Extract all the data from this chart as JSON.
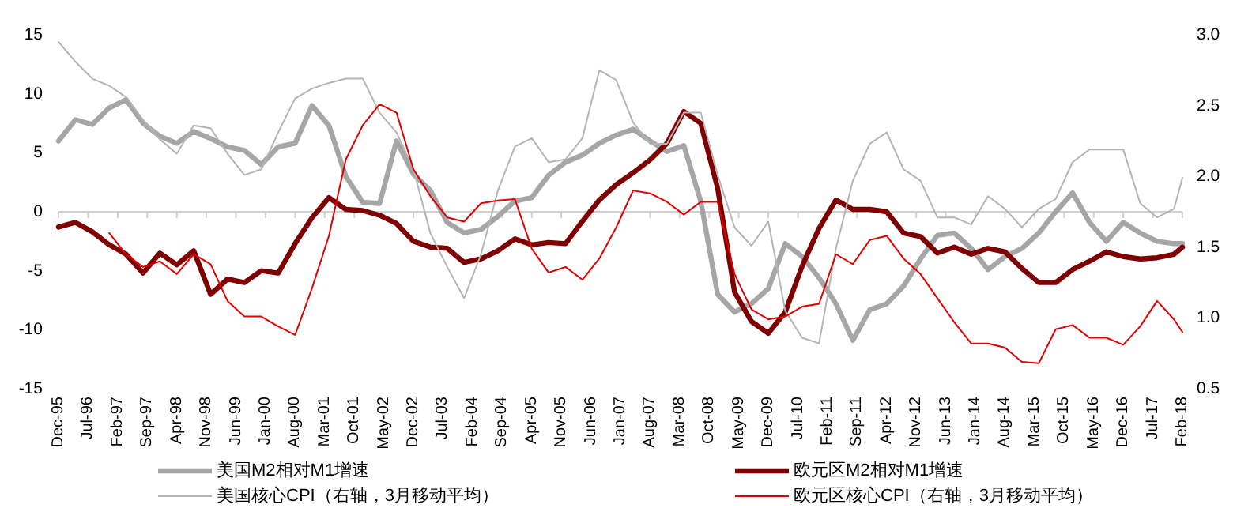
{
  "chart_data": {
    "type": "line",
    "x": [
      "1995-12",
      "1996-04",
      "1996-08",
      "1996-12",
      "1997-04",
      "1997-08",
      "1997-12",
      "1998-04",
      "1998-08",
      "1998-12",
      "1999-04",
      "1999-08",
      "1999-12",
      "2000-04",
      "2000-08",
      "2000-12",
      "2001-04",
      "2001-08",
      "2001-12",
      "2002-04",
      "2002-08",
      "2002-12",
      "2003-04",
      "2003-08",
      "2003-12",
      "2004-04",
      "2004-08",
      "2004-12",
      "2005-04",
      "2005-08",
      "2005-12",
      "2006-04",
      "2006-08",
      "2006-12",
      "2007-04",
      "2007-08",
      "2007-12",
      "2008-04",
      "2008-08",
      "2008-12",
      "2009-04",
      "2009-08",
      "2009-12",
      "2010-04",
      "2010-08",
      "2010-12",
      "2011-04",
      "2011-08",
      "2011-12",
      "2012-04",
      "2012-08",
      "2012-12",
      "2013-04",
      "2013-08",
      "2013-12",
      "2014-04",
      "2014-08",
      "2014-12",
      "2015-04",
      "2015-08",
      "2015-12",
      "2016-04",
      "2016-08",
      "2016-12",
      "2017-04",
      "2017-08",
      "2017-12",
      "2018-02"
    ],
    "series": [
      {
        "name": "美国M2相对M1增速",
        "color": "#a6a6a6",
        "values": [
          6.0,
          7.8,
          7.4,
          8.8,
          9.5,
          7.5,
          6.4,
          5.8,
          6.8,
          6.2,
          5.5,
          5.2,
          4.0,
          5.5,
          5.8,
          9.0,
          7.3,
          3.0,
          0.8,
          0.7,
          6.0,
          3.2,
          1.8,
          -0.9,
          -1.8,
          -1.5,
          -0.4,
          0.9,
          1.2,
          3.1,
          4.2,
          4.8,
          5.8,
          6.5,
          7.0,
          6.0,
          5.1,
          5.6,
          0.9,
          -7.0,
          -8.5,
          -7.8,
          -6.5,
          -2.7,
          -3.8,
          -5.6,
          -7.8,
          -10.9,
          -8.3,
          -7.8,
          -6.3,
          -4.0,
          -2.0,
          -1.8,
          -3.1,
          -4.9,
          -3.8,
          -3.1,
          -1.8,
          0.0,
          1.6,
          -0.9,
          -2.5,
          -0.9,
          -1.8,
          -2.5,
          -2.7,
          -2.7
        ]
      },
      {
        "name": "欧元区M2相对M1增速",
        "color": "#7f0000",
        "values": [
          -1.3,
          -0.9,
          -1.7,
          -2.8,
          -3.6,
          -5.2,
          -3.5,
          -4.5,
          -3.3,
          -7.0,
          -5.7,
          -6.0,
          -5.0,
          -5.2,
          -2.7,
          -0.5,
          1.2,
          0.2,
          0.1,
          -0.3,
          -1.0,
          -2.5,
          -3.0,
          -3.1,
          -4.3,
          -4.0,
          -3.3,
          -2.3,
          -2.8,
          -2.6,
          -2.7,
          -0.8,
          1.0,
          2.3,
          3.3,
          4.4,
          5.8,
          8.5,
          7.5,
          2.0,
          -6.8,
          -9.3,
          -10.3,
          -8.5,
          -4.6,
          -1.4,
          1.0,
          0.2,
          0.2,
          0.0,
          -1.8,
          -2.1,
          -3.5,
          -3.0,
          -3.6,
          -3.1,
          -3.4,
          -4.8,
          -6.0,
          -6.0,
          -4.9,
          -4.2,
          -3.4,
          -3.8,
          -4.0,
          -3.9,
          -3.6,
          -3.0
        ]
      },
      {
        "name": "美国核心CPI（右轴，3月移动平均）",
        "color": "#b4b4b4",
        "axis": "y2",
        "values": [
          2.95,
          2.81,
          2.69,
          2.64,
          2.56,
          2.4,
          2.26,
          2.16,
          2.36,
          2.34,
          2.16,
          2.01,
          2.05,
          2.31,
          2.55,
          2.62,
          2.66,
          2.69,
          2.69,
          2.45,
          2.31,
          2.05,
          1.6,
          1.36,
          1.14,
          1.45,
          1.9,
          2.21,
          2.27,
          2.1,
          2.12,
          2.27,
          2.75,
          2.68,
          2.38,
          2.23,
          2.23,
          2.45,
          2.45,
          2.01,
          1.64,
          1.51,
          1.68,
          1.05,
          0.86,
          0.82,
          1.49,
          1.97,
          2.23,
          2.31,
          2.05,
          1.97,
          1.71,
          1.71,
          1.66,
          1.86,
          1.77,
          1.64,
          1.77,
          1.84,
          2.1,
          2.19,
          2.19,
          2.19,
          1.81,
          1.71,
          1.77,
          1.99
        ]
      },
      {
        "name": "欧元区核心CPI（右轴，3月移动平均）",
        "color": "#e00000",
        "axis": "y2",
        "values": [
          null,
          null,
          null,
          1.6,
          1.45,
          1.36,
          1.4,
          1.31,
          1.45,
          1.38,
          1.12,
          1.01,
          1.01,
          0.94,
          0.88,
          1.21,
          1.58,
          2.12,
          2.36,
          2.51,
          2.45,
          2.05,
          1.86,
          1.71,
          1.68,
          1.81,
          1.83,
          1.84,
          1.49,
          1.32,
          1.36,
          1.27,
          1.42,
          1.64,
          1.9,
          1.88,
          1.82,
          1.73,
          1.82,
          1.82,
          1.31,
          1.06,
          0.99,
          1.01,
          1.08,
          1.1,
          1.45,
          1.38,
          1.55,
          1.58,
          1.42,
          1.31,
          1.14,
          0.97,
          0.82,
          0.82,
          0.79,
          0.69,
          0.68,
          0.92,
          0.95,
          0.86,
          0.86,
          0.81,
          0.94,
          1.12,
          0.99,
          0.9
        ]
      }
    ],
    "xlim": [
      "1995-12",
      "2018-02"
    ],
    "xticks": [
      {
        "value": "1995-12",
        "label": "Dec-95"
      },
      {
        "value": "1996-07",
        "label": "Jul-96"
      },
      {
        "value": "1997-02",
        "label": "Feb-97"
      },
      {
        "value": "1997-09",
        "label": "Sep-97"
      },
      {
        "value": "1998-04",
        "label": "Apr-98"
      },
      {
        "value": "1998-11",
        "label": "Nov-98"
      },
      {
        "value": "1999-06",
        "label": "Jun-99"
      },
      {
        "value": "2000-01",
        "label": "Jan-00"
      },
      {
        "value": "2000-08",
        "label": "Aug-00"
      },
      {
        "value": "2001-03",
        "label": "Mar-01"
      },
      {
        "value": "2001-10",
        "label": "Oct-01"
      },
      {
        "value": "2002-05",
        "label": "May-02"
      },
      {
        "value": "2002-12",
        "label": "Dec-02"
      },
      {
        "value": "2003-07",
        "label": "Jul-03"
      },
      {
        "value": "2004-02",
        "label": "Feb-04"
      },
      {
        "value": "2004-09",
        "label": "Sep-04"
      },
      {
        "value": "2005-04",
        "label": "Apr-05"
      },
      {
        "value": "2005-11",
        "label": "Nov-05"
      },
      {
        "value": "2006-06",
        "label": "Jun-06"
      },
      {
        "value": "2007-01",
        "label": "Jan-07"
      },
      {
        "value": "2007-08",
        "label": "Aug-07"
      },
      {
        "value": "2008-03",
        "label": "Mar-08"
      },
      {
        "value": "2008-10",
        "label": "Oct-08"
      },
      {
        "value": "2009-05",
        "label": "May-09"
      },
      {
        "value": "2009-12",
        "label": "Dec-09"
      },
      {
        "value": "2010-07",
        "label": "Jul-10"
      },
      {
        "value": "2011-02",
        "label": "Feb-11"
      },
      {
        "value": "2011-09",
        "label": "Sep-11"
      },
      {
        "value": "2012-04",
        "label": "Apr-12"
      },
      {
        "value": "2012-11",
        "label": "Nov-12"
      },
      {
        "value": "2013-06",
        "label": "Jun-13"
      },
      {
        "value": "2014-01",
        "label": "Jan-14"
      },
      {
        "value": "2014-08",
        "label": "Aug-14"
      },
      {
        "value": "2015-03",
        "label": "Mar-15"
      },
      {
        "value": "2015-10",
        "label": "Oct-15"
      },
      {
        "value": "2016-05",
        "label": "May-16"
      },
      {
        "value": "2016-12",
        "label": "Dec-16"
      },
      {
        "value": "2017-07",
        "label": "Jul-17"
      },
      {
        "value": "2018-02",
        "label": "Feb-18"
      }
    ],
    "ylim": [
      -15,
      15
    ],
    "yticks": [
      -15,
      -10,
      -5,
      0,
      5,
      10,
      15
    ],
    "y2lim": [
      0.5,
      3.0
    ],
    "y2ticks": [
      {
        "value": 0.5,
        "label": "0.5"
      },
      {
        "value": 1.0,
        "label": "1.0"
      },
      {
        "value": 1.5,
        "label": "1.5"
      },
      {
        "value": 2.0,
        "label": "2.0"
      },
      {
        "value": 2.5,
        "label": "2.5"
      },
      {
        "value": 3.0,
        "label": "3.0"
      }
    ],
    "legend": "bottom",
    "marker": "none",
    "line_style": "solid"
  }
}
